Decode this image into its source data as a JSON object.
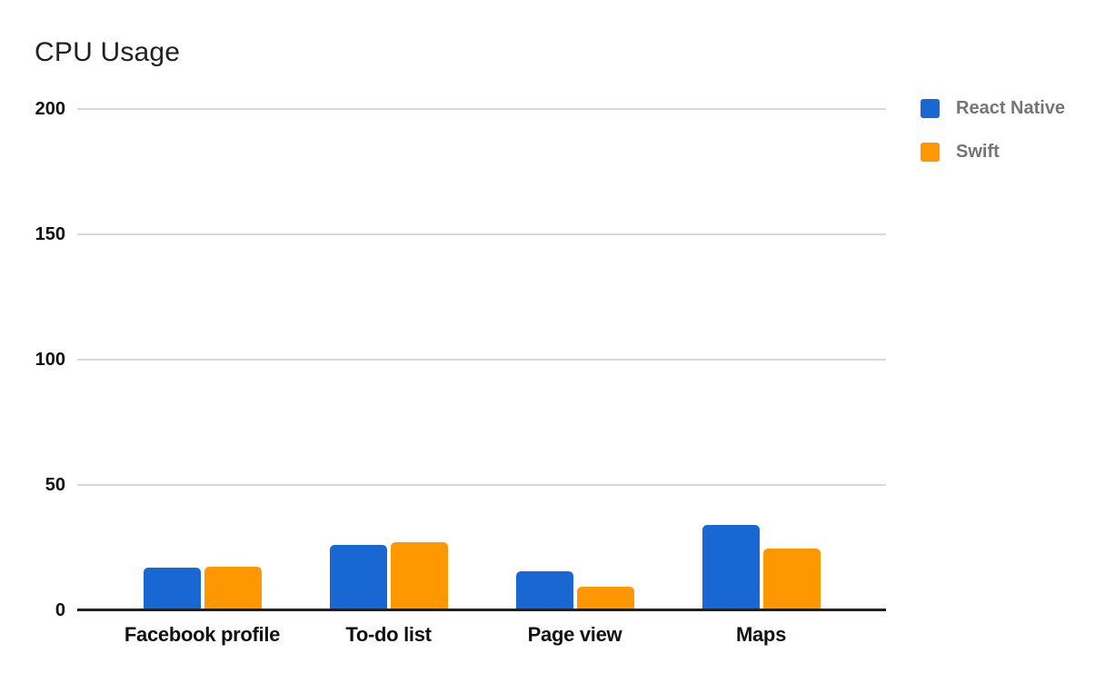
{
  "title": "CPU Usage",
  "chart_data": {
    "type": "bar",
    "title": "CPU Usage",
    "categories": [
      "Facebook profile",
      "To-do list",
      "Page view",
      "Maps"
    ],
    "series": [
      {
        "name": "React Native",
        "color": "#1967D2",
        "values": [
          17,
          26,
          15.5,
          34
        ]
      },
      {
        "name": "Swift",
        "color": "#FF9800",
        "values": [
          17.5,
          27,
          9.5,
          24.5
        ]
      }
    ],
    "xlabel": "",
    "ylabel": "",
    "ylim": [
      0,
      200
    ],
    "yticks": [
      0,
      50,
      100,
      150,
      200
    ],
    "grid": true,
    "gridline_color": "#d9d9d9",
    "axis_line_color": "#212121",
    "legend_position": "top-right",
    "legend_text_color": "#757575",
    "background_color": "#ffffff"
  }
}
